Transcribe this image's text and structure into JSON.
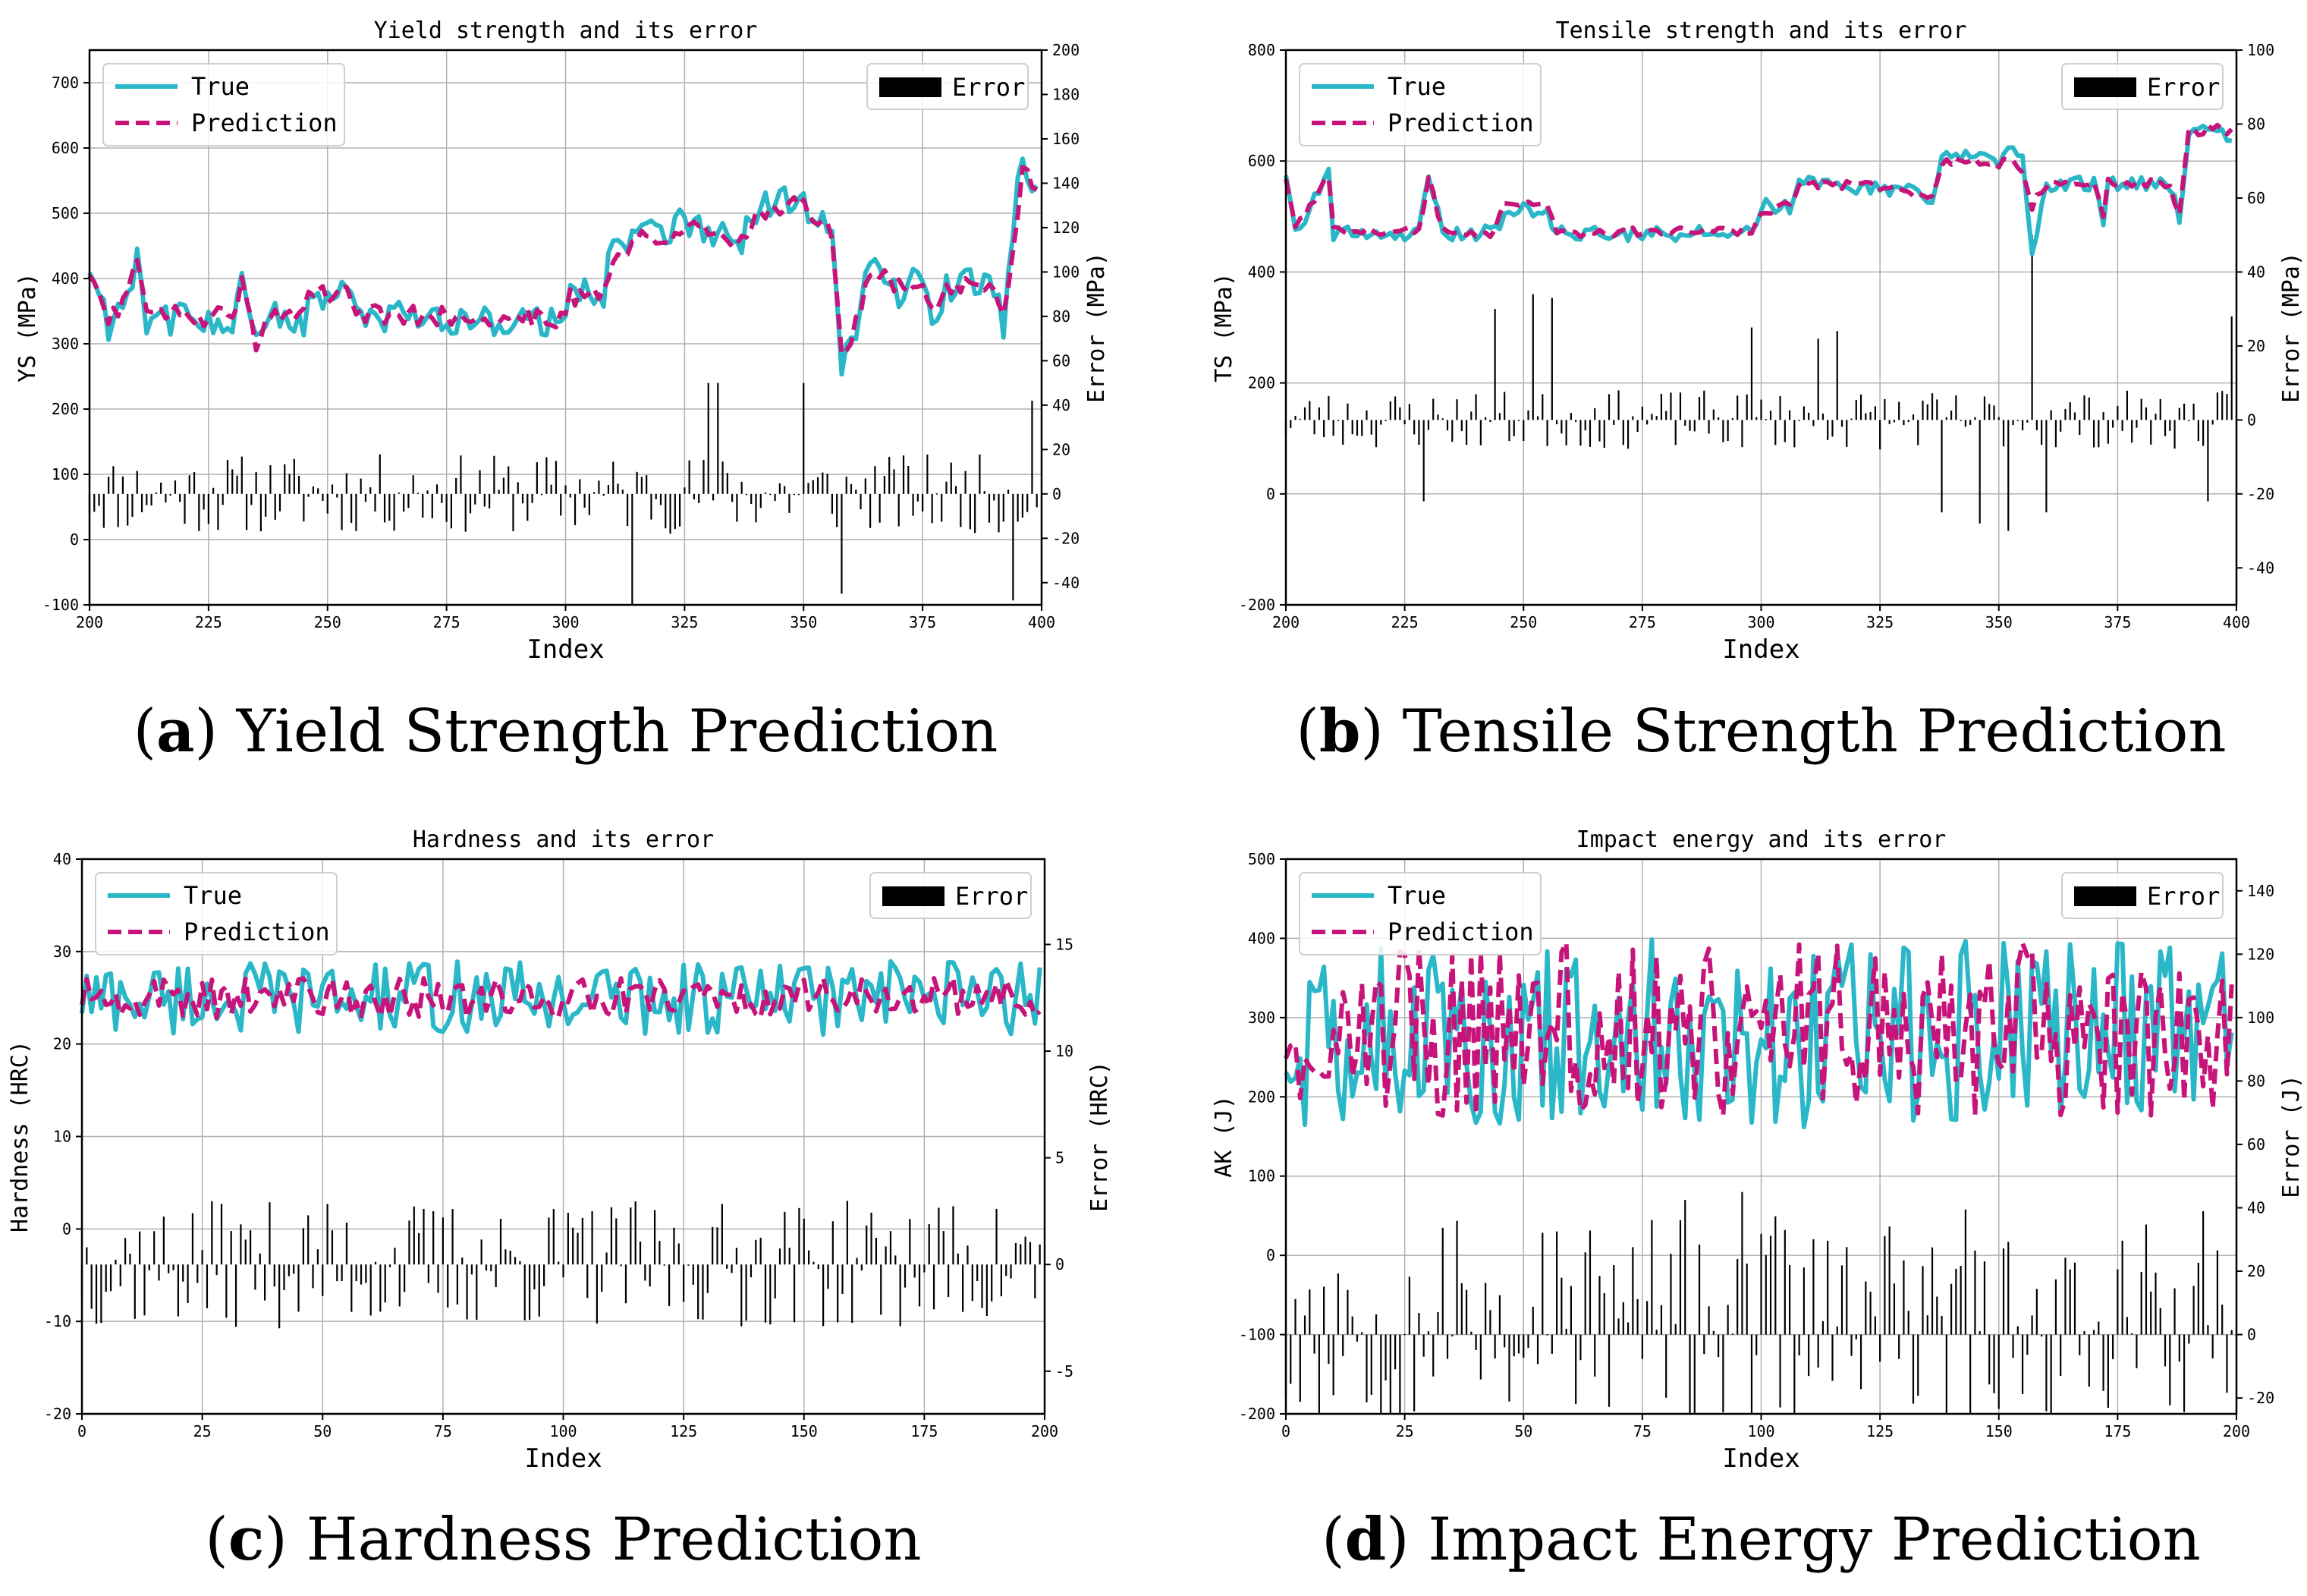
{
  "figure": {
    "panels": [
      {
        "id": "a",
        "caption_letter": "a",
        "caption_text": "Yield Strength Prediction",
        "chart_data": {
          "type": "line",
          "title": "Yield strength and its error",
          "xlabel": "Index",
          "ylabel": "YS (MPa)",
          "y2label": "Error (MPa)",
          "xlim": [
            200,
            400
          ],
          "ylim": [
            -100,
            750
          ],
          "y2lim": [
            -50,
            200
          ],
          "xticks": [
            200,
            225,
            250,
            275,
            300,
            325,
            350,
            375,
            400
          ],
          "yticks": [
            -100,
            0,
            100,
            200,
            300,
            400,
            500,
            600,
            700
          ],
          "y2ticks": [
            -40,
            -20,
            0,
            20,
            40,
            60,
            80,
            100,
            120,
            140,
            160,
            180,
            200
          ],
          "legend_left": [
            "True",
            "Prediction"
          ],
          "legend_right": "Error",
          "grid": true,
          "n_points": 200,
          "seed": 11,
          "series": [
            {
              "name": "True",
              "color": "#2ab7c8",
              "segments": [
                [
                  0,
                  420
                ],
                [
                  4,
                  330
                ],
                [
                  8,
                  380
                ],
                [
                  10,
                  440
                ],
                [
                  12,
                  340
                ],
                [
                  30,
                  335
                ],
                [
                  32,
                  420
                ],
                [
                  35,
                  290
                ],
                [
                  37,
                  340
                ],
                [
                  45,
                  335
                ],
                [
                  46,
                  370
                ],
                [
                  55,
                  370
                ],
                [
                  57,
                  340
                ],
                [
                  100,
                  335
                ],
                [
                  101,
                  380
                ],
                [
                  108,
                  380
                ],
                [
                  110,
                  460
                ],
                [
                  118,
                  470
                ],
                [
                  120,
                  470
                ],
                [
                  126,
                  490
                ],
                [
                  130,
                  470
                ],
                [
                  136,
                  450
                ],
                [
                  140,
                  500
                ],
                [
                  144,
                  520
                ],
                [
                  150,
                  515
                ],
                [
                  156,
                  480
                ],
                [
                  158,
                  270
                ],
                [
                  160,
                  300
                ],
                [
                  164,
                  420
                ],
                [
                  170,
                  380
                ],
                [
                  174,
                  400
                ],
                [
                  178,
                  340
                ],
                [
                  180,
                  390
                ],
                [
                  190,
                  390
                ],
                [
                  192,
                  330
                ],
                [
                  196,
                  600
                ],
                [
                  199,
                  520
                ]
              ],
              "noise": 25
            },
            {
              "name": "Prediction",
              "color": "#c7147a",
              "segments": [
                [
                  0,
                  410
                ],
                [
                  4,
                  335
                ],
                [
                  8,
                  370
                ],
                [
                  10,
                  430
                ],
                [
                  12,
                  345
                ],
                [
                  30,
                  340
                ],
                [
                  32,
                  400
                ],
                [
                  35,
                  300
                ],
                [
                  37,
                  345
                ],
                [
                  45,
                  340
                ],
                [
                  46,
                  375
                ],
                [
                  55,
                  375
                ],
                [
                  57,
                  345
                ],
                [
                  100,
                  340
                ],
                [
                  101,
                  370
                ],
                [
                  108,
                  380
                ],
                [
                  110,
                  440
                ],
                [
                  118,
                  470
                ],
                [
                  120,
                  460
                ],
                [
                  126,
                  480
                ],
                [
                  130,
                  470
                ],
                [
                  136,
                  440
                ],
                [
                  140,
                  490
                ],
                [
                  144,
                  510
                ],
                [
                  150,
                  510
                ],
                [
                  156,
                  470
                ],
                [
                  158,
                  280
                ],
                [
                  160,
                  300
                ],
                [
                  164,
                  410
                ],
                [
                  170,
                  390
                ],
                [
                  174,
                  395
                ],
                [
                  178,
                  345
                ],
                [
                  180,
                  390
                ],
                [
                  190,
                  395
                ],
                [
                  192,
                  335
                ],
                [
                  196,
                  560
                ],
                [
                  199,
                  545
                ]
              ],
              "noise": 15
            },
            {
              "name": "Error",
              "color": "#000000",
              "kind": "bar",
              "axis": "right",
              "amplitude": 18,
              "spikes": {
                "114": -50,
                "130": 50,
                "132": 50,
                "150": 50,
                "158": -45,
                "194": -48,
                "198": 42
              }
            }
          ]
        }
      },
      {
        "id": "b",
        "caption_letter": "b",
        "caption_text": "Tensile Strength Prediction",
        "chart_data": {
          "type": "line",
          "title": "Tensile strength and its error",
          "xlabel": "Index",
          "ylabel": "TS (MPa)",
          "y2label": "Error (MPa)",
          "xlim": [
            200,
            400
          ],
          "ylim": [
            -200,
            800
          ],
          "y2lim": [
            -50,
            100
          ],
          "xticks": [
            200,
            225,
            250,
            275,
            300,
            325,
            350,
            375,
            400
          ],
          "yticks": [
            -200,
            0,
            200,
            400,
            600,
            800
          ],
          "y2ticks": [
            -40,
            -20,
            0,
            20,
            40,
            60,
            80,
            100
          ],
          "legend_left": [
            "True",
            "Prediction"
          ],
          "legend_right": "Error",
          "grid": true,
          "n_points": 200,
          "seed": 23,
          "series": [
            {
              "name": "True",
              "color": "#2ab7c8",
              "segments": [
                [
                  0,
                  580
                ],
                [
                  2,
                  470
                ],
                [
                  9,
                  580
                ],
                [
                  10,
                  470
                ],
                [
                  28,
                  470
                ],
                [
                  30,
                  580
                ],
                [
                  33,
                  470
                ],
                [
                  44,
                  470
                ],
                [
                  46,
                  510
                ],
                [
                  55,
                  510
                ],
                [
                  57,
                  470
                ],
                [
                  98,
                  470
                ],
                [
                  100,
                  520
                ],
                [
                  106,
                  520
                ],
                [
                  108,
                  560
                ],
                [
                  128,
                  550
                ],
                [
                  133,
                  540
                ],
                [
                  136,
                  520
                ],
                [
                  138,
                  610
                ],
                [
                  150,
                  600
                ],
                [
                  152,
                  620
                ],
                [
                  155,
                  600
                ],
                [
                  157,
                  420
                ],
                [
                  160,
                  560
                ],
                [
                  170,
                  560
                ],
                [
                  172,
                  490
                ],
                [
                  173,
                  560
                ],
                [
                  186,
                  560
                ],
                [
                  188,
                  490
                ],
                [
                  190,
                  660
                ],
                [
                  195,
                  670
                ],
                [
                  199,
                  640
                ]
              ],
              "noise": 14
            },
            {
              "name": "Prediction",
              "color": "#c7147a",
              "segments": [
                [
                  0,
                  570
                ],
                [
                  2,
                  475
                ],
                [
                  9,
                  570
                ],
                [
                  10,
                  475
                ],
                [
                  28,
                  475
                ],
                [
                  30,
                  570
                ],
                [
                  33,
                  475
                ],
                [
                  44,
                  470
                ],
                [
                  46,
                  525
                ],
                [
                  55,
                  525
                ],
                [
                  57,
                  470
                ],
                [
                  98,
                  475
                ],
                [
                  100,
                  510
                ],
                [
                  106,
                  520
                ],
                [
                  108,
                  560
                ],
                [
                  128,
                  555
                ],
                [
                  133,
                  540
                ],
                [
                  136,
                  530
                ],
                [
                  138,
                  600
                ],
                [
                  150,
                  595
                ],
                [
                  152,
                  600
                ],
                [
                  155,
                  580
                ],
                [
                  157,
                  520
                ],
                [
                  160,
                  555
                ],
                [
                  170,
                  560
                ],
                [
                  172,
                  495
                ],
                [
                  173,
                  560
                ],
                [
                  186,
                  560
                ],
                [
                  188,
                  500
                ],
                [
                  190,
                  650
                ],
                [
                  195,
                  660
                ],
                [
                  199,
                  655
                ]
              ],
              "noise": 8
            },
            {
              "name": "Error",
              "color": "#000000",
              "kind": "bar",
              "axis": "right",
              "amplitude": 8,
              "spikes": {
                "29": -22,
                "44": 30,
                "52": 34,
                "56": 33,
                "98": 25,
                "112": 22,
                "116": 24,
                "138": -25,
                "146": -28,
                "152": -30,
                "157": 50,
                "160": -25,
                "194": -22,
                "199": 28
              }
            }
          ]
        }
      },
      {
        "id": "c",
        "caption_letter": "c",
        "caption_text": "Hardness Prediction",
        "chart_data": {
          "type": "line",
          "title": "Hardness and its error",
          "xlabel": "Index",
          "ylabel": "Hardness (HRC)",
          "y2label": "Error (HRC)",
          "xlim": [
            0,
            200
          ],
          "ylim": [
            -20,
            40
          ],
          "y2lim": [
            -7,
            19
          ],
          "xticks": [
            0,
            25,
            50,
            75,
            100,
            125,
            150,
            175,
            200
          ],
          "yticks": [
            -20,
            -10,
            0,
            10,
            20,
            30,
            40
          ],
          "y2ticks": [
            -5,
            0,
            5,
            10,
            15
          ],
          "legend_left": [
            "True",
            "Prediction"
          ],
          "legend_right": "Error",
          "grid": true,
          "n_points": 200,
          "seed": 37,
          "series": [
            {
              "name": "True",
              "color": "#2ab7c8",
              "segments": [
                [
                  0,
                  25
                ],
                [
                  199,
                  25
                ]
              ],
              "noise": 4
            },
            {
              "name": "Prediction",
              "color": "#c7147a",
              "segments": [
                [
                  0,
                  25
                ],
                [
                  199,
                  25
                ]
              ],
              "noise": 2.2
            },
            {
              "name": "Error",
              "color": "#000000",
              "kind": "bar",
              "axis": "right",
              "amplitude": 3,
              "spikes": {}
            }
          ]
        }
      },
      {
        "id": "d",
        "caption_letter": "d",
        "caption_text": "Impact Energy Prediction",
        "chart_data": {
          "type": "line",
          "title": "Impact energy and its error",
          "xlabel": "Index",
          "ylabel": "AK (J)",
          "y2label": "Error (J)",
          "xlim": [
            0,
            200
          ],
          "ylim": [
            -200,
            500
          ],
          "y2lim": [
            -25,
            150
          ],
          "xticks": [
            0,
            25,
            50,
            75,
            100,
            125,
            150,
            175,
            200
          ],
          "yticks": [
            -200,
            -100,
            0,
            100,
            200,
            300,
            400,
            500
          ],
          "y2ticks": [
            -20,
            0,
            20,
            40,
            60,
            80,
            100,
            120,
            140
          ],
          "legend_left": [
            "True",
            "Prediction"
          ],
          "legend_right": "Error",
          "grid": true,
          "n_points": 200,
          "seed": 53,
          "series": [
            {
              "name": "True",
              "color": "#2ab7c8",
              "segments": [
                [
                  0,
                  280
                ],
                [
                  199,
                  280
                ]
              ],
              "noise": 120
            },
            {
              "name": "Prediction",
              "color": "#c7147a",
              "segments": [
                [
                  0,
                  285
                ],
                [
                  199,
                  285
                ]
              ],
              "noise": 110
            },
            {
              "name": "Error",
              "color": "#000000",
              "kind": "bar",
              "axis": "right",
              "amplitude": 30,
              "positive_bias": 12,
              "spikes": {}
            }
          ]
        }
      }
    ]
  }
}
